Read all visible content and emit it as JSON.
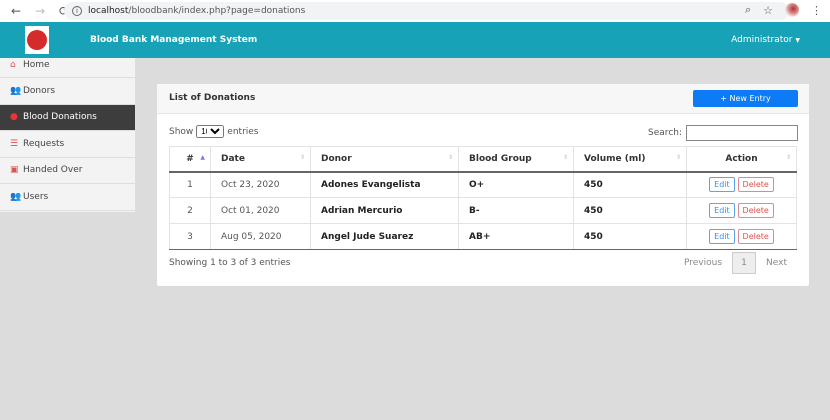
{
  "browser": {
    "url_host": "localhost",
    "url_path": "/bloodbank/index.php?page=donations"
  },
  "navbar": {
    "brand": "Blood Bank Management System",
    "user": "Administrator",
    "color": "#17a2b8"
  },
  "sidebar": {
    "items": [
      {
        "label": "Home",
        "icon": "home-icon"
      },
      {
        "label": "Donors",
        "icon": "users-icon"
      },
      {
        "label": "Blood Donations",
        "icon": "tint-icon",
        "active": true
      },
      {
        "label": "Requests",
        "icon": "list-icon"
      },
      {
        "label": "Handed Over",
        "icon": "toolbox-icon"
      },
      {
        "label": "Users",
        "icon": "users-icon"
      }
    ]
  },
  "card": {
    "title": "List of Donations",
    "new_entry": "+ New Entry"
  },
  "table_controls": {
    "show": "Show",
    "length": "10",
    "entries": "entries",
    "search_label": "Search:",
    "search_value": ""
  },
  "table": {
    "headers": [
      "#",
      "Date",
      "Donor",
      "Blood Group",
      "Volume (ml)",
      "Action"
    ],
    "rows": [
      {
        "n": "1",
        "date": "Oct 23, 2020",
        "donor": "Adones Evangelista",
        "group": "O+",
        "volume": "450"
      },
      {
        "n": "2",
        "date": "Oct 01, 2020",
        "donor": "Adrian Mercurio",
        "group": "B-",
        "volume": "450"
      },
      {
        "n": "3",
        "date": "Aug 05, 2020",
        "donor": "Angel Jude Suarez",
        "group": "AB+",
        "volume": "450"
      }
    ],
    "edit": "Edit",
    "delete": "Delete"
  },
  "footer": {
    "info": "Showing 1 to 3 of 3 entries",
    "previous": "Previous",
    "page": "1",
    "next": "Next"
  }
}
